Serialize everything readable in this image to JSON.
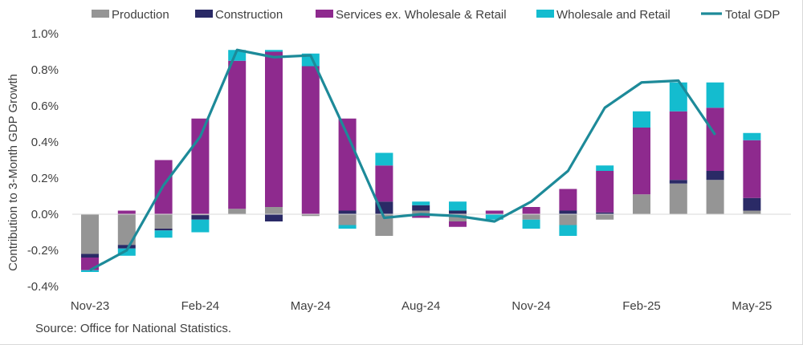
{
  "chart_data": {
    "type": "bar",
    "stacked": true,
    "title": "",
    "xlabel": "",
    "ylabel": "Contribution to 3-Month GDP Growth",
    "ylim": [
      -0.4,
      1.0
    ],
    "y_ticks": [
      "-0.4%",
      "-0.2%",
      "0.0%",
      "0.2%",
      "0.4%",
      "0.6%",
      "0.8%",
      "1.0%"
    ],
    "y_tick_values": [
      -0.4,
      -0.2,
      0.0,
      0.2,
      0.4,
      0.6,
      0.8,
      1.0
    ],
    "grid": false,
    "legend_position": "top",
    "categories": [
      "Nov-23",
      "Dec-23",
      "Jan-24",
      "Feb-24",
      "Mar-24",
      "Apr-24",
      "May-24",
      "Jun-24",
      "Jul-24",
      "Aug-24",
      "Sep-24",
      "Oct-24",
      "Nov-24",
      "Dec-24",
      "Jan-25",
      "Feb-25",
      "Mar-25",
      "Apr-25",
      "May-25"
    ],
    "x_tick_labels": [
      "Nov-23",
      "Feb-24",
      "May-24",
      "Aug-24",
      "Nov-24",
      "Feb-25",
      "May-25"
    ],
    "x_tick_indices": [
      0,
      3,
      6,
      9,
      12,
      15,
      18
    ],
    "series": [
      {
        "name": "Production",
        "type": "bar",
        "color": "#959595",
        "values": [
          -0.22,
          -0.17,
          -0.08,
          -0.005,
          0.03,
          0.04,
          -0.01,
          -0.06,
          -0.12,
          0.02,
          -0.04,
          0.0,
          -0.03,
          -0.06,
          -0.03,
          0.11,
          0.17,
          0.19,
          0.02
        ]
      },
      {
        "name": "Construction",
        "type": "bar",
        "color": "#2a2a66",
        "values": [
          -0.02,
          -0.02,
          -0.01,
          -0.025,
          0.0,
          -0.04,
          0.0,
          0.02,
          0.07,
          0.03,
          0.02,
          0.0,
          0.0,
          0.02,
          0.01,
          0.0,
          0.02,
          0.05,
          0.07
        ]
      },
      {
        "name": "Services ex. Wholesale & Retail",
        "type": "bar",
        "color": "#8e2a8e",
        "values": [
          -0.07,
          0.02,
          0.3,
          0.53,
          0.82,
          0.86,
          0.82,
          0.51,
          0.2,
          -0.02,
          -0.03,
          0.02,
          0.04,
          0.12,
          0.23,
          0.37,
          0.38,
          0.35,
          0.32
        ]
      },
      {
        "name": "Wholesale and Retail",
        "type": "bar",
        "color": "#14bccf",
        "values": [
          -0.01,
          -0.04,
          -0.04,
          -0.07,
          0.06,
          0.01,
          0.07,
          -0.02,
          0.07,
          0.02,
          0.05,
          -0.03,
          -0.05,
          -0.06,
          0.03,
          0.09,
          0.16,
          0.14,
          0.04
        ]
      },
      {
        "name": "Total GDP",
        "type": "line",
        "color": "#1d8a99",
        "values": [
          -0.31,
          -0.2,
          0.16,
          0.43,
          0.91,
          0.87,
          0.88,
          0.44,
          -0.02,
          0.0,
          -0.01,
          -0.04,
          0.07,
          0.24,
          0.59,
          0.73,
          0.74,
          0.44,
          null
        ]
      }
    ]
  },
  "source_text": "Source: Office for National Statistics."
}
